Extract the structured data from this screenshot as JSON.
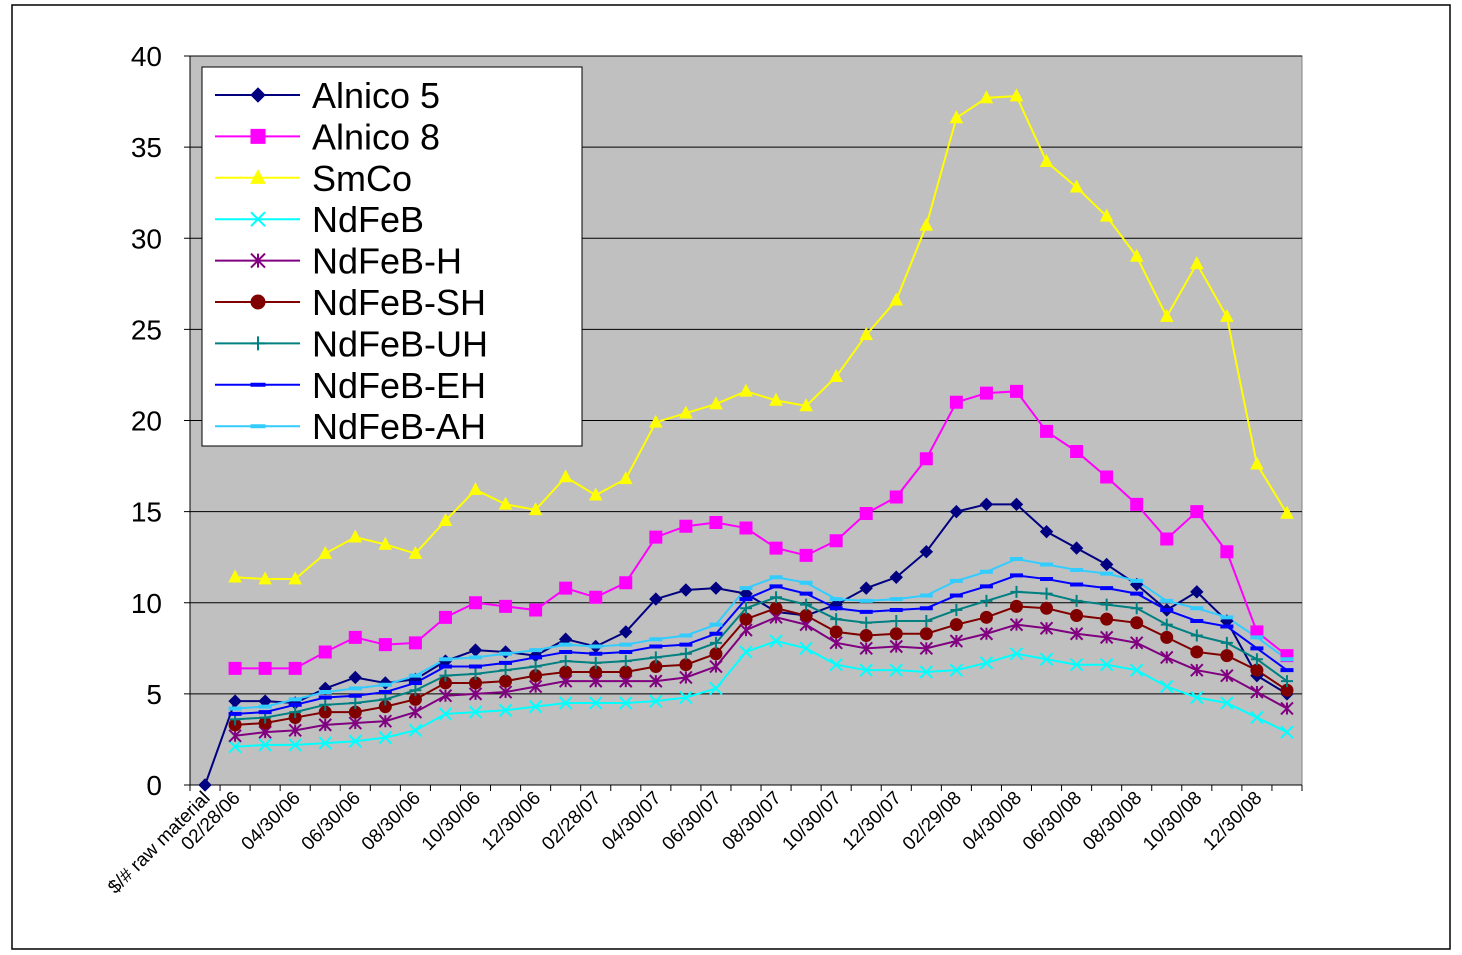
{
  "chart_data": {
    "type": "line",
    "categories": [
      "$/# raw material",
      "02/28/06",
      null,
      "04/30/06",
      null,
      "06/30/06",
      null,
      "08/30/06",
      null,
      "10/30/06",
      null,
      "12/30/06",
      null,
      "02/28/07",
      null,
      "04/30/07",
      null,
      "06/30/07",
      null,
      "08/30/07",
      null,
      "10/30/07",
      null,
      "12/30/07",
      null,
      "02/29/08",
      null,
      "04/30/08",
      null,
      "06/30/08",
      null,
      "08/30/08",
      null,
      "10/30/08",
      null,
      "12/30/08",
      null
    ],
    "ylim": [
      0,
      40
    ],
    "yticks": [
      0,
      5,
      10,
      15,
      20,
      25,
      30,
      35,
      40
    ],
    "grid": true,
    "legend": "top-left",
    "series": [
      {
        "name": "Alnico 5",
        "color": "#000080",
        "marker": "diamond",
        "values": [
          0,
          4.6,
          4.6,
          4.5,
          5.3,
          5.9,
          5.6,
          5.8,
          6.8,
          7.4,
          7.3,
          7.1,
          8.0,
          7.6,
          8.4,
          10.2,
          10.7,
          10.8,
          10.5,
          9.5,
          9.3,
          9.9,
          10.8,
          11.4,
          12.8,
          15.0,
          15.4,
          15.4,
          13.9,
          13.0,
          12.1,
          11.0,
          9.6,
          10.6,
          9.0,
          6.0,
          5.0
        ]
      },
      {
        "name": "Alnico 8",
        "color": "#FF00FF",
        "marker": "square",
        "values": [
          null,
          6.4,
          6.4,
          6.4,
          7.3,
          8.1,
          7.7,
          7.8,
          9.2,
          10.0,
          9.8,
          9.6,
          10.8,
          10.3,
          11.1,
          13.6,
          14.2,
          14.4,
          14.1,
          13.0,
          12.6,
          13.4,
          14.9,
          15.8,
          17.9,
          21.0,
          21.5,
          21.6,
          19.4,
          18.3,
          16.9,
          15.4,
          13.5,
          15.0,
          12.8,
          8.4,
          7.1
        ]
      },
      {
        "name": "SmCo",
        "color": "#FFFF00",
        "marker": "triangle",
        "values": [
          null,
          11.4,
          11.3,
          11.3,
          12.7,
          13.6,
          13.2,
          12.7,
          14.5,
          16.2,
          15.4,
          15.1,
          16.9,
          15.9,
          16.8,
          19.9,
          20.4,
          20.9,
          21.6,
          21.1,
          20.8,
          22.4,
          24.7,
          26.6,
          30.7,
          36.6,
          37.7,
          37.8,
          34.2,
          32.8,
          31.2,
          29.0,
          25.7,
          28.6,
          25.7,
          17.6,
          14.9
        ]
      },
      {
        "name": "NdFeB",
        "color": "#00FFFF",
        "marker": "x",
        "values": [
          null,
          2.1,
          2.2,
          2.2,
          2.3,
          2.4,
          2.6,
          3.0,
          3.9,
          4.0,
          4.1,
          4.3,
          4.5,
          4.5,
          4.5,
          4.6,
          4.8,
          5.3,
          7.3,
          7.9,
          7.5,
          6.6,
          6.3,
          6.3,
          6.2,
          6.3,
          6.7,
          7.2,
          6.9,
          6.6,
          6.6,
          6.3,
          5.4,
          4.8,
          4.5,
          3.7,
          2.9
        ]
      },
      {
        "name": "NdFeB-H",
        "color": "#800080",
        "marker": "star",
        "values": [
          null,
          2.7,
          2.9,
          3.0,
          3.3,
          3.4,
          3.5,
          4.0,
          4.9,
          5.0,
          5.1,
          5.4,
          5.7,
          5.7,
          5.7,
          5.7,
          5.9,
          6.5,
          8.5,
          9.2,
          8.8,
          7.8,
          7.5,
          7.6,
          7.5,
          7.9,
          8.3,
          8.8,
          8.6,
          8.3,
          8.1,
          7.8,
          7.0,
          6.3,
          6.0,
          5.1,
          4.2
        ]
      },
      {
        "name": "NdFeB-SH",
        "color": "#800000",
        "marker": "circle",
        "values": [
          null,
          3.3,
          3.4,
          3.7,
          4.0,
          4.0,
          4.3,
          4.7,
          5.6,
          5.6,
          5.7,
          6.0,
          6.2,
          6.2,
          6.2,
          6.5,
          6.6,
          7.2,
          9.1,
          9.7,
          9.3,
          8.4,
          8.2,
          8.3,
          8.3,
          8.8,
          9.2,
          9.8,
          9.7,
          9.3,
          9.1,
          8.9,
          8.1,
          7.3,
          7.1,
          6.3,
          5.2
        ]
      },
      {
        "name": "NdFeB-UH",
        "color": "#008080",
        "marker": "plus",
        "values": [
          null,
          3.6,
          3.7,
          4.0,
          4.4,
          4.5,
          4.7,
          5.2,
          6.0,
          6.1,
          6.3,
          6.5,
          6.8,
          6.7,
          6.8,
          7.0,
          7.2,
          7.8,
          9.7,
          10.3,
          9.9,
          9.1,
          8.9,
          9.0,
          9.0,
          9.6,
          10.1,
          10.6,
          10.5,
          10.1,
          9.9,
          9.7,
          8.8,
          8.2,
          7.8,
          6.9,
          5.7
        ]
      },
      {
        "name": "NdFeB-EH",
        "color": "#0000FF",
        "marker": "dash",
        "values": [
          null,
          3.9,
          4.0,
          4.4,
          4.8,
          4.9,
          5.1,
          5.6,
          6.5,
          6.5,
          6.7,
          7.0,
          7.3,
          7.2,
          7.3,
          7.6,
          7.7,
          8.3,
          10.2,
          10.9,
          10.5,
          9.7,
          9.5,
          9.6,
          9.7,
          10.4,
          10.9,
          11.5,
          11.3,
          11.0,
          10.8,
          10.5,
          9.6,
          9.0,
          8.7,
          7.5,
          6.3
        ]
      },
      {
        "name": "NdFeB-AH",
        "color": "#33CCFF",
        "marker": "dash",
        "values": [
          null,
          4.2,
          4.3,
          4.7,
          5.1,
          5.3,
          5.5,
          6.0,
          6.9,
          7.0,
          7.2,
          7.4,
          7.7,
          7.6,
          7.7,
          8.0,
          8.2,
          8.8,
          10.8,
          11.4,
          11.1,
          10.2,
          10.1,
          10.2,
          10.4,
          11.2,
          11.7,
          12.4,
          12.1,
          11.8,
          11.6,
          11.2,
          10.1,
          9.7,
          9.2,
          8.1,
          6.9
        ]
      }
    ]
  }
}
